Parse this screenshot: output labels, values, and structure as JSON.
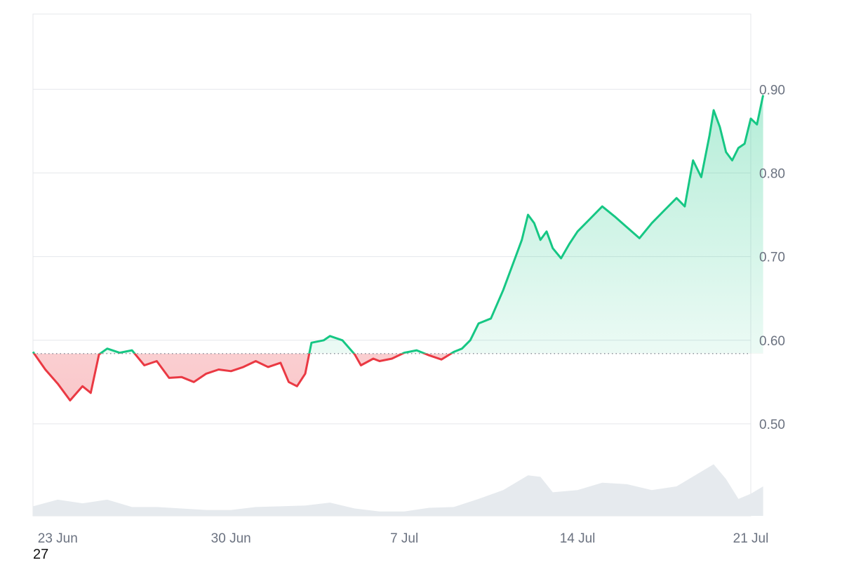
{
  "footer_label": "27",
  "colors": {
    "up_line": "#16c784",
    "down_line": "#ea3943",
    "up_fill": "#16c784",
    "down_fill": "#ea3943",
    "grid": "#e5e7eb",
    "baseline": "#6b7280",
    "volume": "#e6eaee",
    "tick_text": "#6b7280"
  },
  "chart_data": {
    "type": "area",
    "baseline": 0.584,
    "ylim": [
      0.39,
      0.99
    ],
    "yticks": [
      {
        "value": 0.5,
        "label": "0.50"
      },
      {
        "value": 0.6,
        "label": "0.60"
      },
      {
        "value": 0.7,
        "label": "0.70"
      },
      {
        "value": 0.8,
        "label": "0.80"
      },
      {
        "value": 0.9,
        "label": "0.90"
      }
    ],
    "xlim": [
      "2024-06-22",
      "2024-07-21"
    ],
    "xticks": [
      {
        "value": "2024-06-23",
        "label": "23 Jun"
      },
      {
        "value": "2024-06-30",
        "label": "30 Jun"
      },
      {
        "value": "2024-07-07",
        "label": "7 Jul"
      },
      {
        "value": "2024-07-14",
        "label": "14 Jul"
      },
      {
        "value": "2024-07-21",
        "label": "21 Jul"
      }
    ],
    "grid": true,
    "series": [
      {
        "values": [
          [
            "2024-06-22T00:00",
            0.586
          ],
          [
            "2024-06-22T12:00",
            0.565
          ],
          [
            "2024-06-23T00:00",
            0.548
          ],
          [
            "2024-06-23T12:00",
            0.528
          ],
          [
            "2024-06-24T00:00",
            0.545
          ],
          [
            "2024-06-24T08:00",
            0.537
          ],
          [
            "2024-06-24T16:00",
            0.583
          ],
          [
            "2024-06-25T00:00",
            0.59
          ],
          [
            "2024-06-25T12:00",
            0.585
          ],
          [
            "2024-06-26T00:00",
            0.588
          ],
          [
            "2024-06-26T12:00",
            0.57
          ],
          [
            "2024-06-27T00:00",
            0.575
          ],
          [
            "2024-06-27T12:00",
            0.555
          ],
          [
            "2024-06-28T00:00",
            0.556
          ],
          [
            "2024-06-28T12:00",
            0.55
          ],
          [
            "2024-06-29T00:00",
            0.56
          ],
          [
            "2024-06-29T12:00",
            0.565
          ],
          [
            "2024-06-30T00:00",
            0.563
          ],
          [
            "2024-06-30T12:00",
            0.568
          ],
          [
            "2024-07-01T00:00",
            0.575
          ],
          [
            "2024-07-01T12:00",
            0.568
          ],
          [
            "2024-07-02T00:00",
            0.573
          ],
          [
            "2024-07-02T08:00",
            0.55
          ],
          [
            "2024-07-02T16:00",
            0.545
          ],
          [
            "2024-07-03T00:00",
            0.56
          ],
          [
            "2024-07-03T06:00",
            0.597
          ],
          [
            "2024-07-03T18:00",
            0.6
          ],
          [
            "2024-07-04T00:00",
            0.605
          ],
          [
            "2024-07-04T12:00",
            0.6
          ],
          [
            "2024-07-05T00:00",
            0.583
          ],
          [
            "2024-07-05T06:00",
            0.57
          ],
          [
            "2024-07-05T18:00",
            0.578
          ],
          [
            "2024-07-06T00:00",
            0.575
          ],
          [
            "2024-07-06T12:00",
            0.578
          ],
          [
            "2024-07-07T00:00",
            0.585
          ],
          [
            "2024-07-07T12:00",
            0.588
          ],
          [
            "2024-07-08T00:00",
            0.582
          ],
          [
            "2024-07-08T12:00",
            0.577
          ],
          [
            "2024-07-09T00:00",
            0.586
          ],
          [
            "2024-07-09T08:00",
            0.59
          ],
          [
            "2024-07-09T16:00",
            0.6
          ],
          [
            "2024-07-10T00:00",
            0.62
          ],
          [
            "2024-07-10T12:00",
            0.626
          ],
          [
            "2024-07-11T00:00",
            0.66
          ],
          [
            "2024-07-11T12:00",
            0.7
          ],
          [
            "2024-07-11T18:00",
            0.72
          ],
          [
            "2024-07-12T00:00",
            0.75
          ],
          [
            "2024-07-12T06:00",
            0.74
          ],
          [
            "2024-07-12T12:00",
            0.72
          ],
          [
            "2024-07-12T18:00",
            0.73
          ],
          [
            "2024-07-13T00:00",
            0.71
          ],
          [
            "2024-07-13T08:00",
            0.698
          ],
          [
            "2024-07-13T16:00",
            0.715
          ],
          [
            "2024-07-14T00:00",
            0.73
          ],
          [
            "2024-07-14T12:00",
            0.745
          ],
          [
            "2024-07-15T00:00",
            0.76
          ],
          [
            "2024-07-15T12:00",
            0.748
          ],
          [
            "2024-07-16T00:00",
            0.735
          ],
          [
            "2024-07-16T12:00",
            0.722
          ],
          [
            "2024-07-17T00:00",
            0.74
          ],
          [
            "2024-07-17T12:00",
            0.755
          ],
          [
            "2024-07-18T00:00",
            0.77
          ],
          [
            "2024-07-18T08:00",
            0.76
          ],
          [
            "2024-07-18T16:00",
            0.815
          ],
          [
            "2024-07-19T00:00",
            0.795
          ],
          [
            "2024-07-19T08:00",
            0.845
          ],
          [
            "2024-07-19T12:00",
            0.875
          ],
          [
            "2024-07-19T18:00",
            0.855
          ],
          [
            "2024-07-20T00:00",
            0.825
          ],
          [
            "2024-07-20T06:00",
            0.815
          ],
          [
            "2024-07-20T12:00",
            0.83
          ],
          [
            "2024-07-20T18:00",
            0.835
          ],
          [
            "2024-07-21T00:00",
            0.865
          ],
          [
            "2024-07-21T06:00",
            0.858
          ],
          [
            "2024-07-21T12:00",
            0.893
          ]
        ]
      }
    ],
    "volume": [
      [
        "2024-06-22T00:00",
        0.13
      ],
      [
        "2024-06-23T00:00",
        0.22
      ],
      [
        "2024-06-24T00:00",
        0.17
      ],
      [
        "2024-06-25T00:00",
        0.22
      ],
      [
        "2024-06-26T00:00",
        0.12
      ],
      [
        "2024-06-27T00:00",
        0.12
      ],
      [
        "2024-06-28T00:00",
        0.1
      ],
      [
        "2024-06-29T00:00",
        0.08
      ],
      [
        "2024-06-30T00:00",
        0.08
      ],
      [
        "2024-07-01T00:00",
        0.12
      ],
      [
        "2024-07-02T00:00",
        0.13
      ],
      [
        "2024-07-03T00:00",
        0.14
      ],
      [
        "2024-07-04T00:00",
        0.18
      ],
      [
        "2024-07-05T00:00",
        0.1
      ],
      [
        "2024-07-06T00:00",
        0.06
      ],
      [
        "2024-07-07T00:00",
        0.06
      ],
      [
        "2024-07-08T00:00",
        0.11
      ],
      [
        "2024-07-09T00:00",
        0.12
      ],
      [
        "2024-07-10T00:00",
        0.23
      ],
      [
        "2024-07-11T00:00",
        0.35
      ],
      [
        "2024-07-12T00:00",
        0.55
      ],
      [
        "2024-07-12T12:00",
        0.53
      ],
      [
        "2024-07-13T00:00",
        0.32
      ],
      [
        "2024-07-14T00:00",
        0.35
      ],
      [
        "2024-07-15T00:00",
        0.45
      ],
      [
        "2024-07-16T00:00",
        0.43
      ],
      [
        "2024-07-17T00:00",
        0.35
      ],
      [
        "2024-07-18T00:00",
        0.4
      ],
      [
        "2024-07-19T00:00",
        0.6
      ],
      [
        "2024-07-19T12:00",
        0.7
      ],
      [
        "2024-07-20T00:00",
        0.5
      ],
      [
        "2024-07-20T12:00",
        0.23
      ],
      [
        "2024-07-21T00:00",
        0.3
      ],
      [
        "2024-07-21T12:00",
        0.4
      ]
    ]
  }
}
